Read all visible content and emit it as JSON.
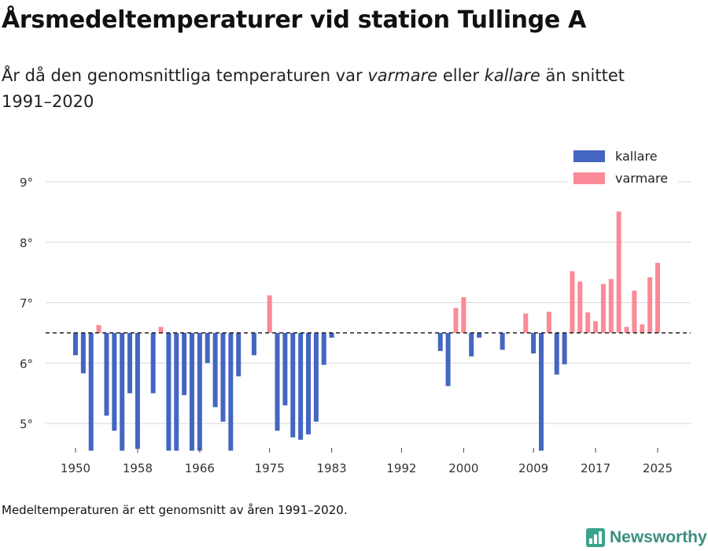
{
  "title": "Årsmedeltemperaturer vid station Tullinge A",
  "subtitle": {
    "part1": "År då den genomsnittliga temperaturen var ",
    "warmer_word": "varmare",
    "part2": " eller ",
    "colder_word": "kallare",
    "part3": " än snittet 1991–2020"
  },
  "footnote": "Medeltemperaturen är ett genomsnitt av åren 1991–2020.",
  "brand": "Newsworthy",
  "chart_data": {
    "type": "bar",
    "title": "Årsmedeltemperaturer vid station Tullinge A",
    "xlabel": "",
    "ylabel": "",
    "baseline": 6.5,
    "ylim": [
      4.5,
      9.5
    ],
    "xlim": [
      1946,
      2030
    ],
    "y_ticks": [
      5,
      6,
      7,
      8,
      9
    ],
    "y_tick_suffix": "°",
    "x_ticks": [
      1950,
      1958,
      1966,
      1975,
      1983,
      1992,
      2000,
      2009,
      2017,
      2025
    ],
    "legend": [
      {
        "key": "colder",
        "label": "kallare",
        "color": "#4466c1"
      },
      {
        "key": "warmer",
        "label": "varmare",
        "color": "#fb8a98"
      }
    ],
    "legend_position": "top-right",
    "grid": true,
    "series": [
      {
        "name": "Årsmedeltemperatur",
        "x": [
          1950,
          1951,
          1952,
          1953,
          1954,
          1955,
          1956,
          1957,
          1958,
          1960,
          1961,
          1962,
          1963,
          1964,
          1965,
          1966,
          1967,
          1968,
          1969,
          1970,
          1971,
          1973,
          1975,
          1976,
          1977,
          1978,
          1979,
          1980,
          1981,
          1982,
          1983,
          1997,
          1998,
          1999,
          2000,
          2001,
          2002,
          2005,
          2008,
          2009,
          2010,
          2011,
          2012,
          2013,
          2014,
          2015,
          2016,
          2017,
          2018,
          2019,
          2020,
          2021,
          2022,
          2023,
          2024,
          2025
        ],
        "values": [
          6.13,
          5.83,
          4.55,
          6.63,
          5.13,
          4.88,
          4.55,
          5.5,
          4.58,
          5.5,
          6.6,
          4.55,
          4.55,
          5.47,
          4.55,
          4.55,
          6.0,
          5.27,
          5.03,
          4.55,
          5.78,
          6.13,
          7.12,
          4.88,
          5.3,
          4.77,
          4.73,
          4.82,
          5.03,
          5.97,
          6.42,
          6.2,
          5.62,
          6.91,
          7.09,
          6.11,
          6.42,
          6.22,
          6.82,
          6.16,
          4.55,
          6.85,
          5.81,
          5.98,
          7.52,
          7.35,
          6.84,
          6.69,
          7.31,
          7.39,
          8.51,
          6.6,
          7.2,
          6.64,
          7.42,
          7.66
        ]
      }
    ]
  }
}
